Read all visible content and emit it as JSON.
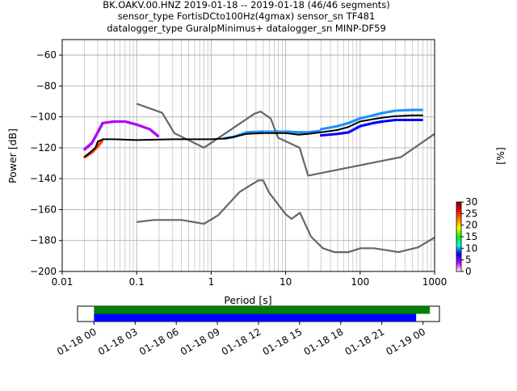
{
  "title_lines": [
    "BK.OAKV.00.HNZ   2019-01-18 -- 2019-01-18  (46/46 segments)",
    "sensor_type FortisDCto100Hz(4gmax) sensor_sn TF481",
    "datalogger_type GuralpMinimus+ datalogger_sn MINP-DF59"
  ],
  "chart_data": {
    "type": "line",
    "xlabel": "Period [s]",
    "ylabel": "Power [dB]",
    "xscale": "log",
    "xlim": [
      0.01,
      1000
    ],
    "ylim": [
      -200,
      -50
    ],
    "grid": true,
    "x_ticks": [
      {
        "value": 0.01,
        "label": "0.01"
      },
      {
        "value": 0.1,
        "label": "0.1"
      },
      {
        "value": 1,
        "label": "1"
      },
      {
        "value": 10,
        "label": "10"
      },
      {
        "value": 100,
        "label": "100"
      },
      {
        "value": 1000,
        "label": "1000"
      }
    ],
    "y_ticks": [
      {
        "value": -60,
        "label": "−60"
      },
      {
        "value": -80,
        "label": "−80"
      },
      {
        "value": -100,
        "label": "−100"
      },
      {
        "value": -120,
        "label": "−120"
      },
      {
        "value": -140,
        "label": "−140"
      },
      {
        "value": -160,
        "label": "−160"
      },
      {
        "value": -180,
        "label": "−180"
      },
      {
        "value": -200,
        "label": "−200"
      }
    ],
    "series": [
      {
        "role": "new_high_noise_model",
        "color": "#666666",
        "points": [
          [
            0.1,
            -91.5
          ],
          [
            0.22,
            -97.4
          ],
          [
            0.32,
            -110.5
          ],
          [
            0.8,
            -120
          ],
          [
            3.8,
            -98
          ],
          [
            4.6,
            -96.5
          ],
          [
            6.3,
            -101
          ],
          [
            7.9,
            -113.5
          ],
          [
            15.4,
            -120
          ],
          [
            20,
            -138
          ],
          [
            354.8,
            -126
          ],
          [
            1000,
            -111
          ]
        ]
      },
      {
        "role": "new_low_noise_model",
        "color": "#666666",
        "points": [
          [
            0.1,
            -168
          ],
          [
            0.17,
            -166.7
          ],
          [
            0.4,
            -166.7
          ],
          [
            0.8,
            -169.2
          ],
          [
            1.24,
            -163.7
          ],
          [
            2.4,
            -148.6
          ],
          [
            4.3,
            -141.1
          ],
          [
            5,
            -141.1
          ],
          [
            6,
            -149
          ],
          [
            10,
            -163
          ],
          [
            12,
            -166
          ],
          [
            15.6,
            -162
          ],
          [
            21.9,
            -177.5
          ],
          [
            31.6,
            -185
          ],
          [
            45,
            -187.5
          ],
          [
            70,
            -187.5
          ],
          [
            101,
            -185
          ],
          [
            154,
            -185
          ],
          [
            328,
            -187.5
          ],
          [
            600,
            -184.4
          ],
          [
            1000,
            -178
          ]
        ]
      },
      {
        "role": "median",
        "color": "#000000",
        "points": [
          [
            0.02,
            -126
          ],
          [
            0.025,
            -122
          ],
          [
            0.028,
            -120
          ],
          [
            0.03,
            -116
          ],
          [
            0.035,
            -114.5
          ],
          [
            0.05,
            -114.5
          ],
          [
            0.1,
            -115
          ],
          [
            0.3,
            -114.5
          ],
          [
            1,
            -114.5
          ],
          [
            1.5,
            -114
          ],
          [
            2,
            -113
          ],
          [
            3,
            -111
          ],
          [
            5,
            -110.5
          ],
          [
            8,
            -110.5
          ],
          [
            10,
            -110.5
          ],
          [
            15,
            -111.5
          ],
          [
            20,
            -111
          ],
          [
            30,
            -110
          ],
          [
            50,
            -108.5
          ],
          [
            70,
            -106.5
          ],
          [
            100,
            -103
          ],
          [
            150,
            -101.5
          ],
          [
            200,
            -100.5
          ],
          [
            300,
            -99.5
          ],
          [
            500,
            -99
          ],
          [
            700,
            -99
          ]
        ]
      }
    ],
    "density_series": [
      {
        "name": "0.02-0.03 s ramp",
        "color": "#ff3b00",
        "points": [
          [
            0.02,
            -126
          ],
          [
            0.025,
            -123
          ],
          [
            0.03,
            -119
          ],
          [
            0.035,
            -115
          ]
        ]
      },
      {
        "name": "0.02-0.2 s upper cloud",
        "color": "#b000ff",
        "points": [
          [
            0.02,
            -121
          ],
          [
            0.025,
            -117
          ],
          [
            0.03,
            -110
          ],
          [
            0.035,
            -104
          ],
          [
            0.05,
            -103
          ],
          [
            0.07,
            -103
          ],
          [
            0.1,
            -105
          ],
          [
            0.15,
            -108
          ],
          [
            0.2,
            -113
          ]
        ]
      },
      {
        "name": "1-20 s band",
        "color": "#1e90ff",
        "points": [
          [
            1.5,
            -114
          ],
          [
            2,
            -113
          ],
          [
            3,
            -110
          ],
          [
            5,
            -109.5
          ],
          [
            10,
            -109.5
          ],
          [
            15,
            -110
          ],
          [
            20,
            -110
          ],
          [
            30,
            -109
          ]
        ]
      },
      {
        "name": "30-700 s upper spread",
        "color": "#1e90ff",
        "points": [
          [
            30,
            -108
          ],
          [
            50,
            -106
          ],
          [
            70,
            -104
          ],
          [
            100,
            -101
          ],
          [
            150,
            -99
          ],
          [
            200,
            -97.5
          ],
          [
            300,
            -96
          ],
          [
            500,
            -95.5
          ],
          [
            700,
            -95.5
          ]
        ]
      },
      {
        "name": "30-700 s lower spread",
        "color": "#0000ff",
        "points": [
          [
            30,
            -112
          ],
          [
            50,
            -111
          ],
          [
            70,
            -110
          ],
          [
            100,
            -106
          ],
          [
            150,
            -104
          ],
          [
            200,
            -103
          ],
          [
            300,
            -102
          ],
          [
            500,
            -102
          ],
          [
            700,
            -102
          ]
        ]
      }
    ],
    "colorbar": {
      "label": "[%]",
      "ticks": [
        {
          "value": 0,
          "label": "0"
        },
        {
          "value": 5,
          "label": "5"
        },
        {
          "value": 10,
          "label": "10"
        },
        {
          "value": 15,
          "label": "15"
        },
        {
          "value": 20,
          "label": "20"
        },
        {
          "value": 25,
          "label": "25"
        },
        {
          "value": 30,
          "label": "30"
        }
      ],
      "range": [
        0,
        30
      ],
      "colors": [
        "#ffffff",
        "#c000ff",
        "#0000ff",
        "#00ffff",
        "#00ff00",
        "#ffff00",
        "#ff8000",
        "#ff0000",
        "#800000"
      ]
    },
    "timeline": {
      "ticks": [
        "01-18 00",
        "01-18 03",
        "01-18 06",
        "01-18 09",
        "01-18 12",
        "01-18 15",
        "01-18 18",
        "01-18 21",
        "01-19 00"
      ],
      "range_hours": [
        -1.2,
        25.2
      ],
      "bars": [
        {
          "name": "data",
          "color": "#008000",
          "start_hours": 0,
          "end_hours": 24.5
        },
        {
          "name": "used",
          "color": "#0000ff",
          "start_hours": 0,
          "end_hours": 23.5
        }
      ]
    }
  }
}
